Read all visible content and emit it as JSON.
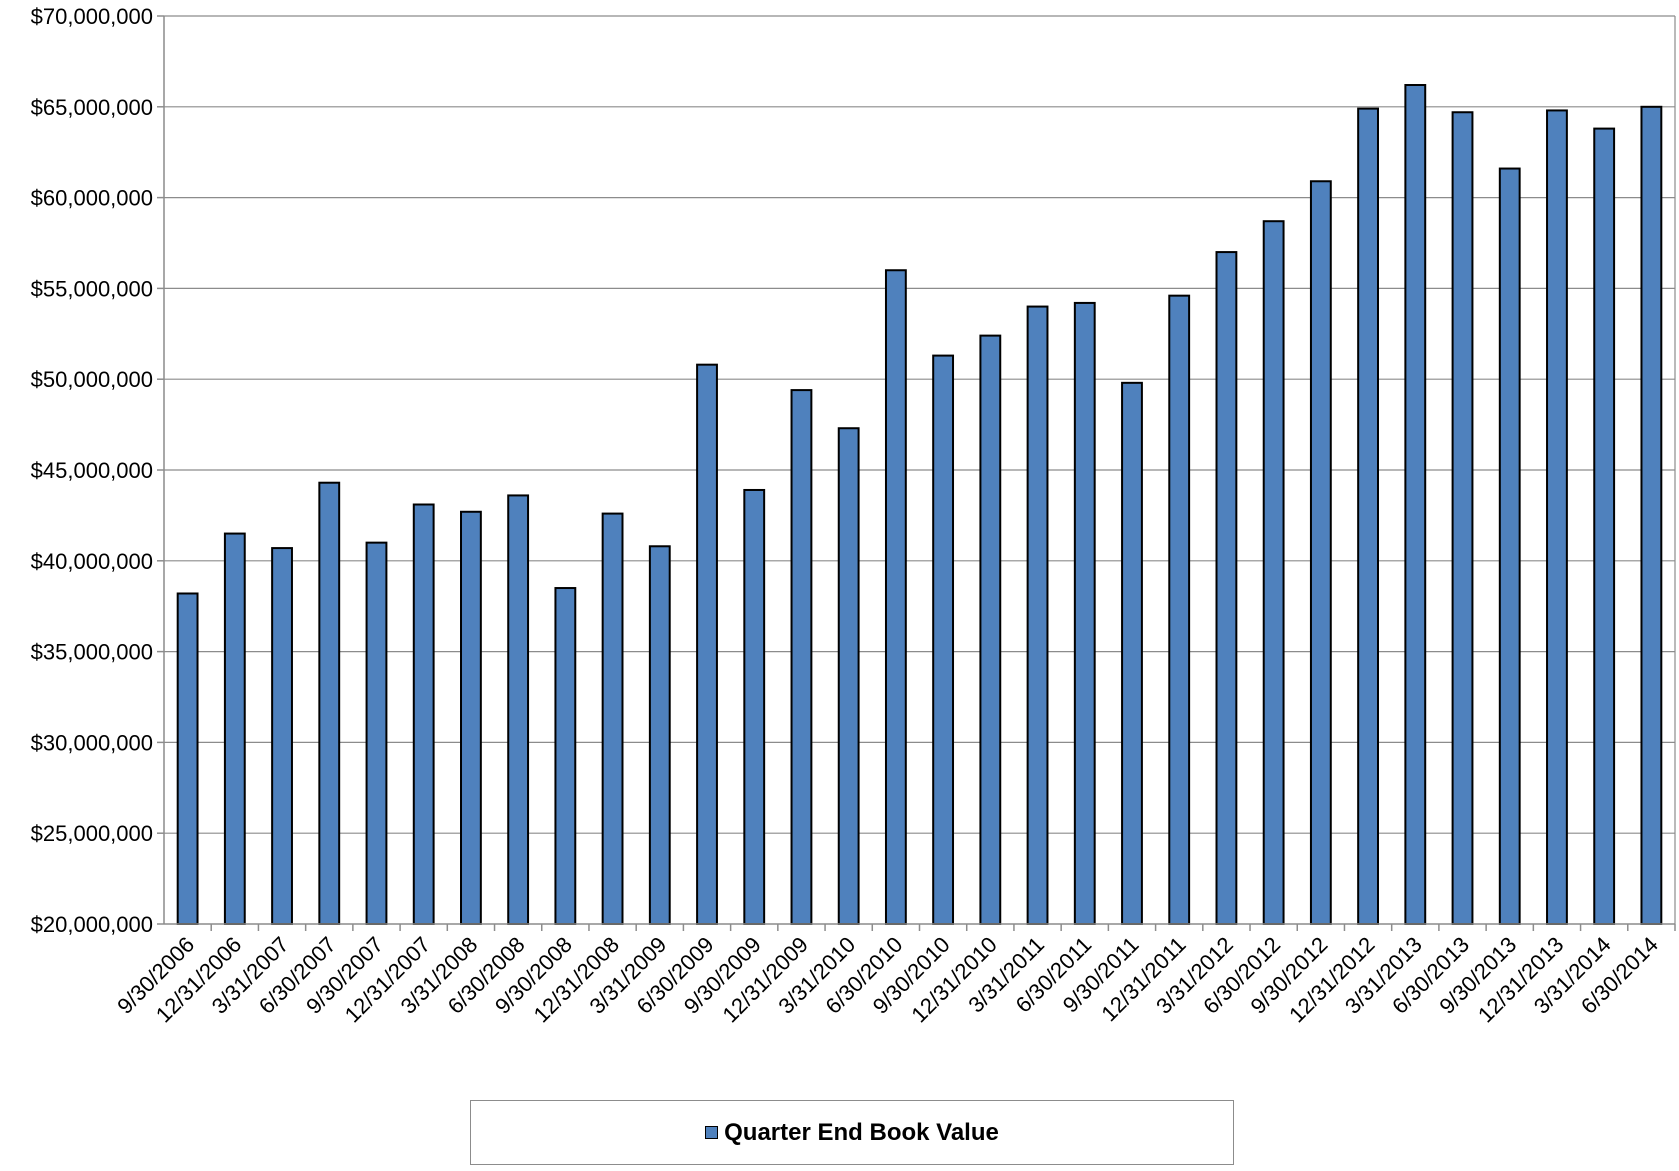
{
  "chart_data": {
    "type": "bar",
    "title": "",
    "xlabel": "",
    "ylabel": "",
    "ylim": [
      20000000,
      70000000
    ],
    "ytick_step": 5000000,
    "yticks": [
      "$20,000,000",
      "$25,000,000",
      "$30,000,000",
      "$35,000,000",
      "$40,000,000",
      "$45,000,000",
      "$50,000,000",
      "$55,000,000",
      "$60,000,000",
      "$65,000,000",
      "$70,000,000"
    ],
    "grid": true,
    "legend_position": "bottom",
    "categories": [
      "9/30/2006",
      "12/31/2006",
      "3/31/2007",
      "6/30/2007",
      "9/30/2007",
      "12/31/2007",
      "3/31/2008",
      "6/30/2008",
      "9/30/2008",
      "12/31/2008",
      "3/31/2009",
      "6/30/2009",
      "9/30/2009",
      "12/31/2009",
      "3/31/2010",
      "6/30/2010",
      "9/30/2010",
      "12/31/2010",
      "3/31/2011",
      "6/30/2011",
      "9/30/2011",
      "12/31/2011",
      "3/31/2012",
      "6/30/2012",
      "9/30/2012",
      "12/31/2012",
      "3/31/2013",
      "6/30/2013",
      "9/30/2013",
      "12/31/2013",
      "3/31/2014",
      "6/30/2014"
    ],
    "series": [
      {
        "name": "Quarter End Book Value",
        "color": "#4f81bd",
        "values": [
          38200000,
          41500000,
          40700000,
          44300000,
          41000000,
          43100000,
          42700000,
          43600000,
          38500000,
          42600000,
          40800000,
          50800000,
          43900000,
          49400000,
          47300000,
          56000000,
          51300000,
          52400000,
          54000000,
          54200000,
          49800000,
          54600000,
          57000000,
          58700000,
          60900000,
          64900000,
          66200000,
          64700000,
          61600000,
          64800000,
          63800000,
          65000000
        ]
      }
    ]
  },
  "colors": {
    "bar_fill": "#4f81bd",
    "bar_stroke": "#000000",
    "grid": "#8c8c8c",
    "axis": "#8c8c8c"
  }
}
